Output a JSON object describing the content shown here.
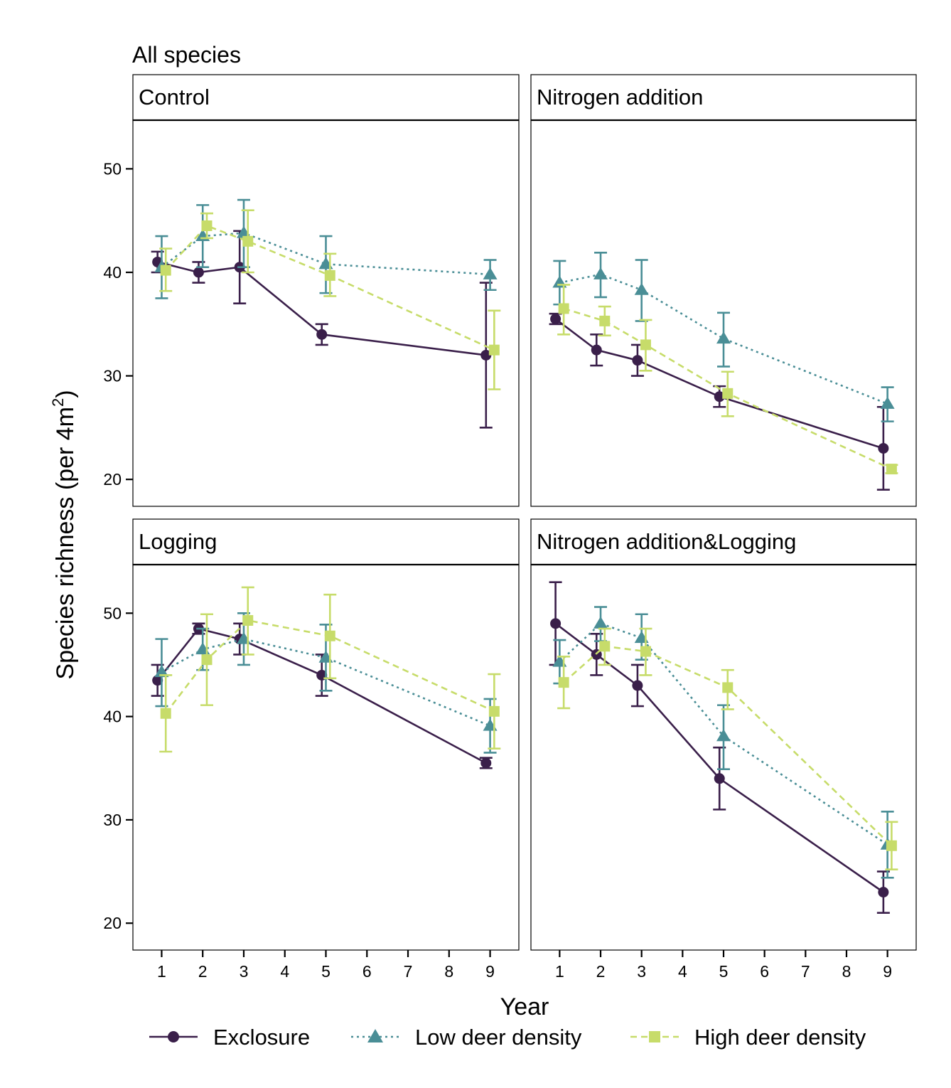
{
  "chart_data": {
    "type": "line",
    "title": "All species",
    "xlabel": "Year",
    "ylabel": "Species richness (per 4m",
    "ylabel_superscript": "2",
    "ylabel_close": ")",
    "x_ticks": [
      1,
      2,
      3,
      4,
      5,
      6,
      7,
      8,
      9
    ],
    "y_ticks": [
      20,
      30,
      40,
      50
    ],
    "xlim": [
      0.3,
      9.7
    ],
    "ylim": [
      17.4,
      54.7
    ],
    "grid": false,
    "legend_position": "bottom",
    "colors": {
      "Exclosure": "#3a1f4a",
      "Low deer density": "#4a8e96",
      "High deer density": "#c7dc6a"
    },
    "legend": [
      {
        "name": "Exclosure",
        "shape": "circle",
        "dash": "solid"
      },
      {
        "name": "Low deer density",
        "shape": "triangle",
        "dash": "dotted"
      },
      {
        "name": "High deer density",
        "shape": "square",
        "dash": "dashed"
      }
    ],
    "panels": [
      {
        "label": "Control",
        "series": [
          {
            "name": "Exclosure",
            "x": [
              1,
              2,
              3,
              5,
              9
            ],
            "y": [
              41,
              40,
              40.5,
              34,
              32
            ],
            "ymin": [
              40,
              39,
              37,
              33,
              25
            ],
            "ymax": [
              42,
              41,
              44,
              35,
              39
            ]
          },
          {
            "name": "Low deer density",
            "x": [
              1,
              2,
              3,
              5,
              9
            ],
            "y": [
              40.5,
              43.5,
              43.8,
              40.8,
              39.8
            ],
            "ymin": [
              37.5,
              40.5,
              40.5,
              38,
              38.3
            ],
            "ymax": [
              43.5,
              46.5,
              47,
              43.5,
              41.2
            ]
          },
          {
            "name": "High deer density",
            "x": [
              1,
              2,
              3,
              5,
              9
            ],
            "y": [
              40.2,
              44.5,
              43,
              39.7,
              32.5
            ],
            "ymin": [
              38.2,
              43.3,
              40,
              37.7,
              28.7
            ],
            "ymax": [
              42.3,
              45.7,
              46,
              41.8,
              36.3
            ]
          }
        ]
      },
      {
        "label": "Nitrogen addition",
        "series": [
          {
            "name": "Exclosure",
            "x": [
              1,
              2,
              3,
              5,
              9
            ],
            "y": [
              35.5,
              32.5,
              31.5,
              28,
              23
            ],
            "ymin": [
              35,
              31,
              30,
              27,
              19
            ],
            "ymax": [
              36,
              34,
              33,
              29,
              27
            ]
          },
          {
            "name": "Low deer density",
            "x": [
              1,
              2,
              3,
              5,
              9
            ],
            "y": [
              39,
              39.8,
              38.3,
              33.6,
              27.3
            ],
            "ymin": [
              36.9,
              37.6,
              35.3,
              30.9,
              25.6
            ],
            "ymax": [
              41.1,
              41.9,
              41.2,
              36.1,
              28.9
            ]
          },
          {
            "name": "High deer density",
            "x": [
              1,
              2,
              3,
              5,
              9
            ],
            "y": [
              36.5,
              35.3,
              33,
              28.3,
              21
            ],
            "ymin": [
              34,
              33.9,
              30.5,
              26.1,
              20.6
            ],
            "ymax": [
              38.8,
              36.7,
              35.4,
              30.4,
              21.4
            ]
          }
        ]
      },
      {
        "label": "Logging",
        "series": [
          {
            "name": "Exclosure",
            "x": [
              1,
              2,
              3,
              5,
              9
            ],
            "y": [
              43.5,
              48.5,
              47.5,
              44,
              35.5
            ],
            "ymin": [
              42,
              48,
              46,
              42,
              35
            ],
            "ymax": [
              45,
              49,
              49,
              46,
              36
            ]
          },
          {
            "name": "Low deer density",
            "x": [
              1,
              2,
              3,
              5,
              9
            ],
            "y": [
              44.3,
              46.5,
              47.5,
              45.7,
              39.1
            ],
            "ymin": [
              41,
              44.5,
              45,
              42.5,
              36.5
            ],
            "ymax": [
              47.5,
              48.5,
              50,
              48.9,
              41.7
            ]
          },
          {
            "name": "High deer density",
            "x": [
              1,
              2,
              3,
              5,
              9
            ],
            "y": [
              40.3,
              45.5,
              49.3,
              47.8,
              40.5
            ],
            "ymin": [
              36.6,
              41.1,
              46,
              43.7,
              36.9
            ],
            "ymax": [
              44,
              49.9,
              52.5,
              51.8,
              44.1
            ]
          }
        ]
      },
      {
        "label": "Nitrogen addition&Logging",
        "series": [
          {
            "name": "Exclosure",
            "x": [
              1,
              2,
              3,
              5,
              9
            ],
            "y": [
              49,
              46,
              43,
              34,
              23
            ],
            "ymin": [
              45,
              44,
              41,
              31,
              21
            ],
            "ymax": [
              53,
              48,
              45,
              37,
              25
            ]
          },
          {
            "name": "Low deer density",
            "x": [
              1,
              2,
              3,
              5,
              9
            ],
            "y": [
              45.3,
              49,
              47.6,
              38.1,
              27.6
            ],
            "ymin": [
              43.2,
              47.3,
              45.5,
              34.9,
              24.4
            ],
            "ymax": [
              47.4,
              50.6,
              49.9,
              41.1,
              30.8
            ]
          },
          {
            "name": "High deer density",
            "x": [
              1,
              2,
              3,
              5,
              9
            ],
            "y": [
              43.3,
              46.8,
              46.3,
              42.8,
              27.5
            ],
            "ymin": [
              40.8,
              45,
              44,
              40.7,
              25.2
            ],
            "ymax": [
              45.8,
              48.5,
              48.5,
              44.5,
              29.8
            ]
          }
        ]
      }
    ]
  }
}
